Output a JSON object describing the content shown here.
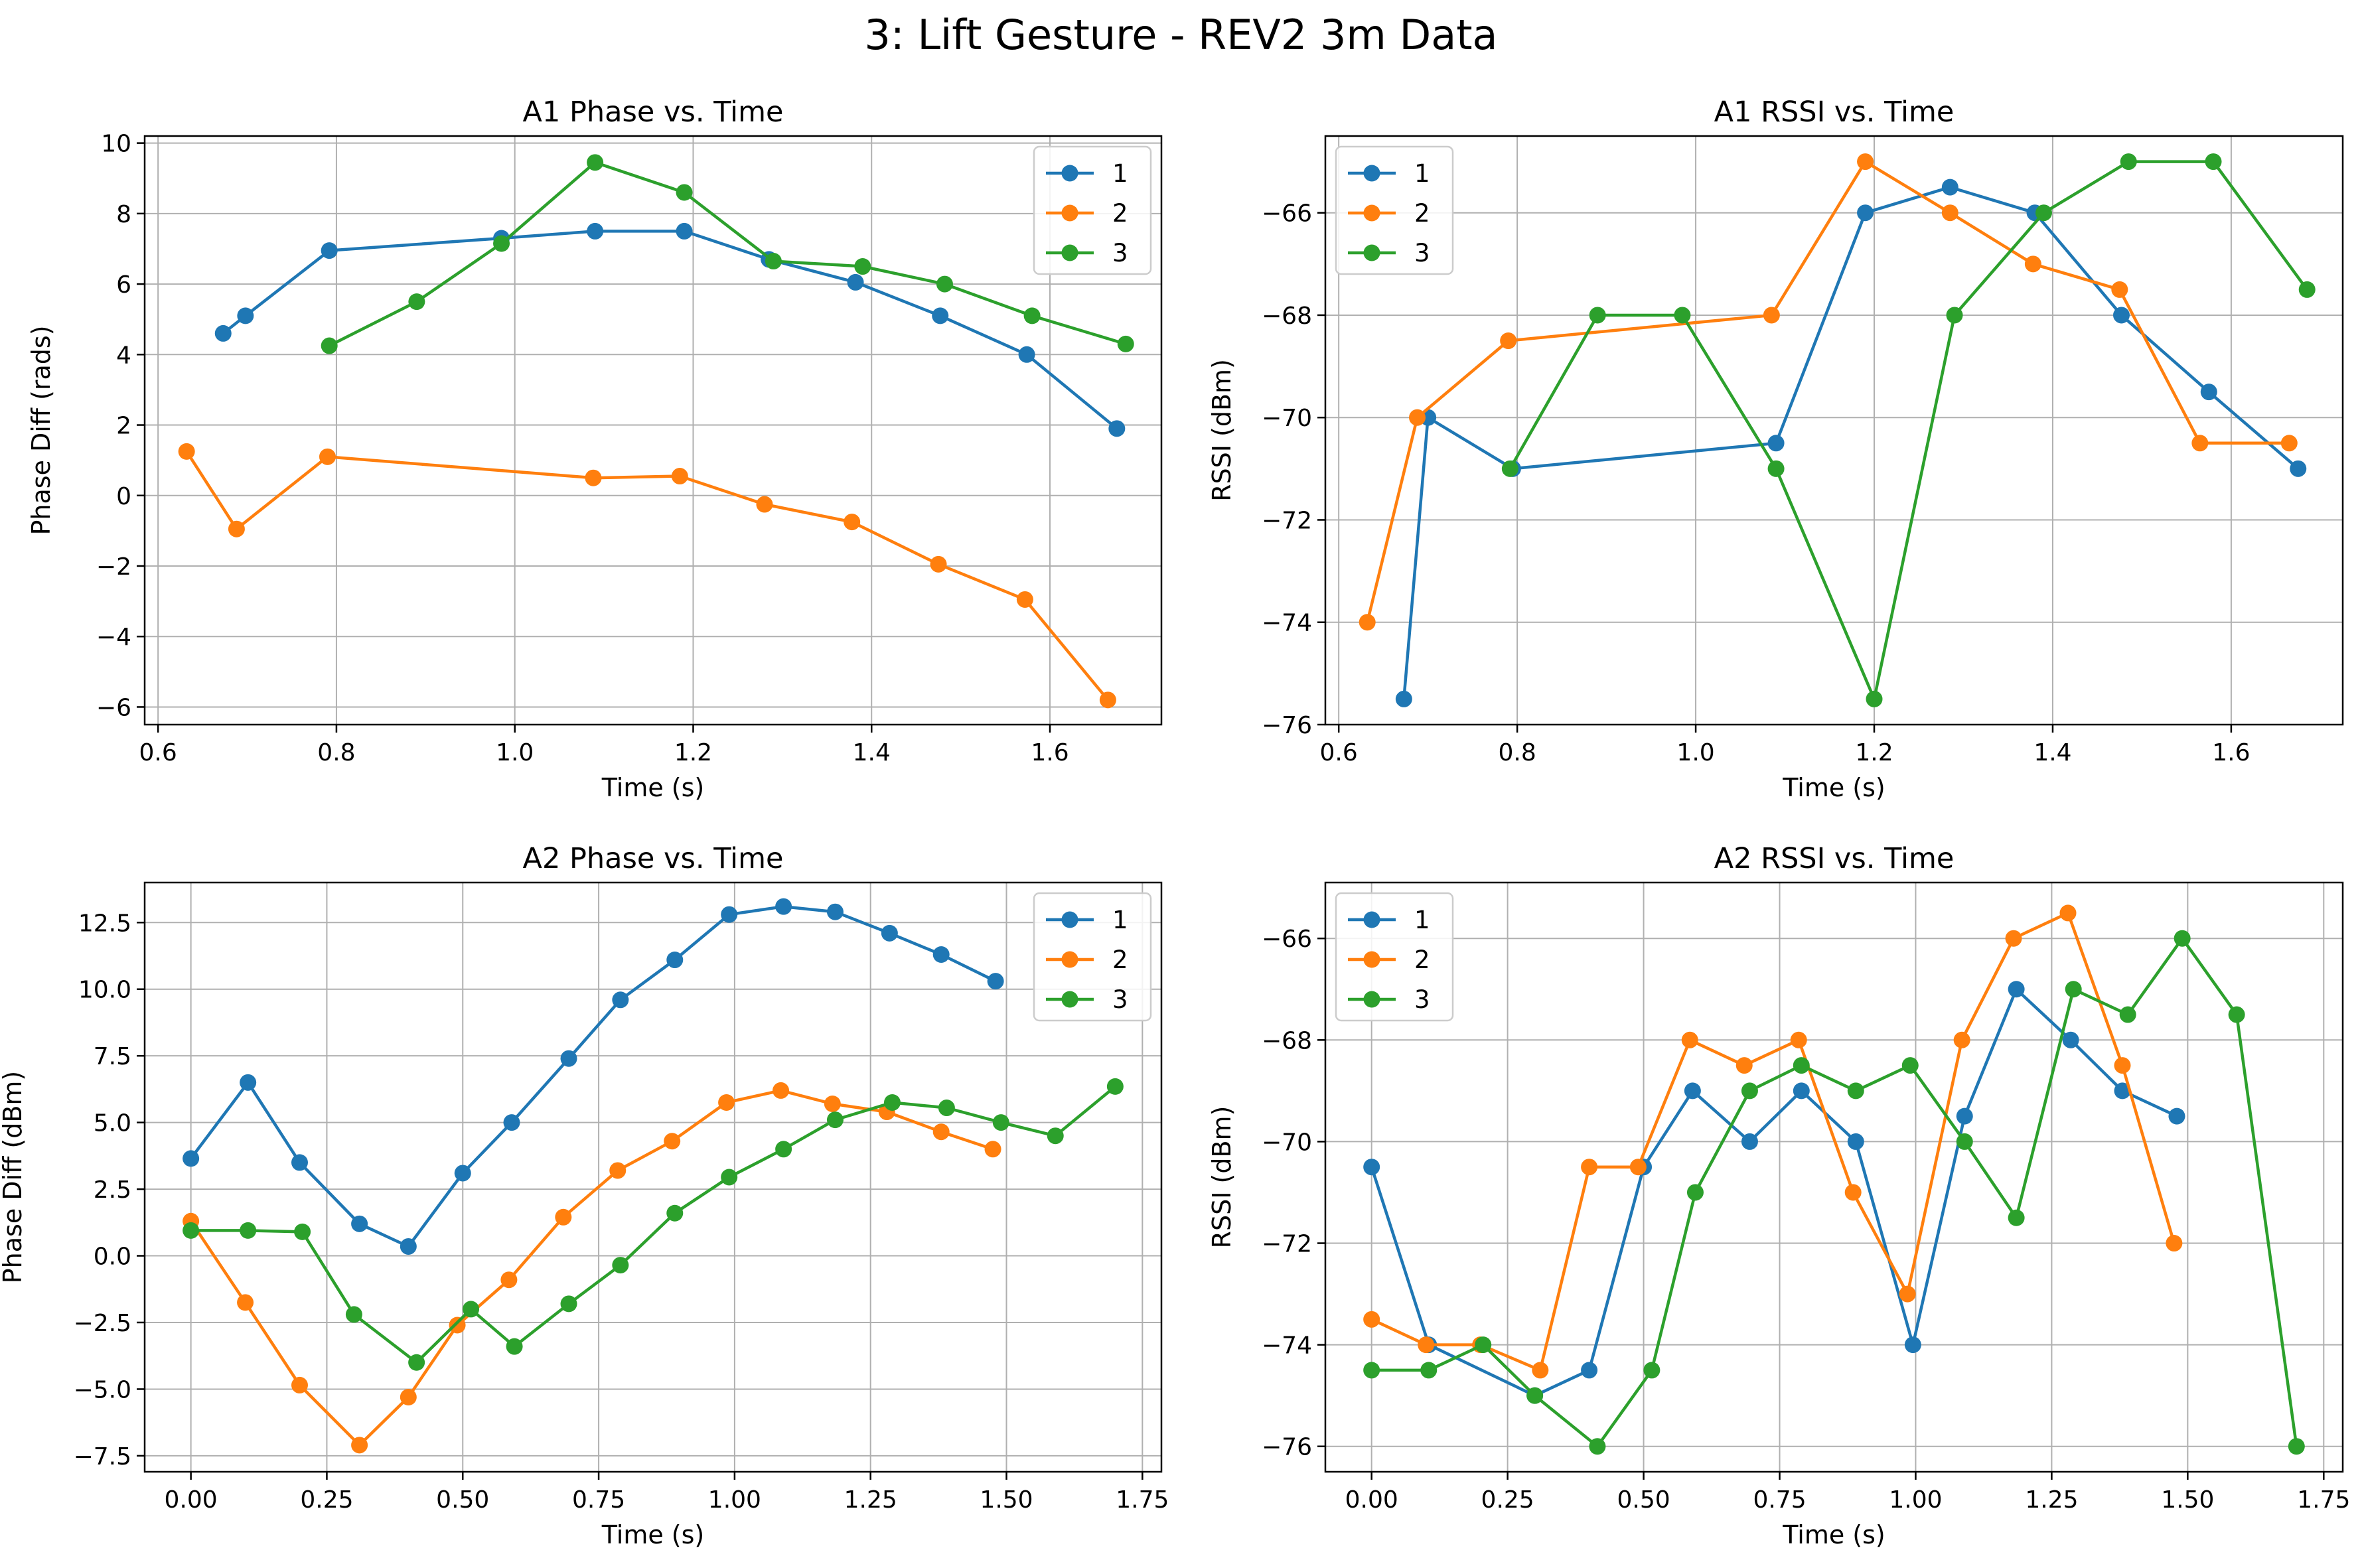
{
  "suptitle": "3: Lift Gesture - REV2 3m Data",
  "colors": {
    "1": "#1f77b4",
    "2": "#ff7f0e",
    "3": "#2ca02c"
  },
  "chart_data": [
    {
      "type": "line",
      "title": "A1 Phase vs. Time",
      "xlabel": "Time (s)",
      "ylabel": "Phase Diff (rads)",
      "xlim": [
        0.585,
        1.725
      ],
      "ylim": [
        -6.5,
        10.2
      ],
      "xticks": [
        0.6,
        0.8,
        1.0,
        1.2,
        1.4,
        1.6
      ],
      "xtick_labels": [
        "0.6",
        "0.8",
        "1.0",
        "1.2",
        "1.4",
        "1.6"
      ],
      "yticks": [
        -6,
        -4,
        -2,
        0,
        2,
        4,
        6,
        8,
        10
      ],
      "ytick_labels": [
        "−6",
        "−4",
        "−2",
        "0",
        "2",
        "4",
        "6",
        "8",
        "10"
      ],
      "grid": true,
      "legend_loc": "upper-right",
      "series": [
        {
          "name": "1",
          "x": [
            0.673,
            0.698,
            0.792,
            0.985,
            1.09,
            1.19,
            1.285,
            1.382,
            1.477,
            1.574,
            1.675
          ],
          "y": [
            4.6,
            5.1,
            6.95,
            7.3,
            7.5,
            7.5,
            6.7,
            6.05,
            5.1,
            4.0,
            1.9
          ]
        },
        {
          "name": "2",
          "x": [
            0.632,
            0.688,
            0.79,
            1.088,
            1.185,
            1.28,
            1.378,
            1.475,
            1.572,
            1.665
          ],
          "y": [
            1.25,
            -0.95,
            1.1,
            0.5,
            0.55,
            -0.25,
            -0.75,
            -1.95,
            -2.95,
            -5.8
          ]
        },
        {
          "name": "3",
          "x": [
            0.792,
            0.89,
            0.985,
            1.09,
            1.19,
            1.29,
            1.39,
            1.482,
            1.58,
            1.685
          ],
          "y": [
            4.25,
            5.5,
            7.15,
            9.45,
            8.6,
            6.65,
            6.5,
            6.0,
            5.1,
            4.3
          ]
        }
      ]
    },
    {
      "type": "line",
      "title": "A1 RSSI vs. Time",
      "xlabel": "Time (s)",
      "ylabel": "RSSI (dBm)",
      "xlim": [
        0.585,
        1.725
      ],
      "ylim": [
        -76,
        -64.5
      ],
      "xticks": [
        0.6,
        0.8,
        1.0,
        1.2,
        1.4,
        1.6
      ],
      "xtick_labels": [
        "0.6",
        "0.8",
        "1.0",
        "1.2",
        "1.4",
        "1.6"
      ],
      "yticks": [
        -76,
        -74,
        -72,
        -70,
        -68,
        -66
      ],
      "ytick_labels": [
        "−76",
        "−74",
        "−72",
        "−70",
        "−68",
        "−66"
      ],
      "grid": true,
      "legend_loc": "upper-left",
      "series": [
        {
          "name": "1",
          "x": [
            0.673,
            0.7,
            0.795,
            1.09,
            1.19,
            1.285,
            1.38,
            1.477,
            1.575,
            1.675
          ],
          "y": [
            -75.5,
            -70,
            -71,
            -70.5,
            -66,
            -65.5,
            -66,
            -68,
            -69.5,
            -71
          ]
        },
        {
          "name": "2",
          "x": [
            0.632,
            0.688,
            0.79,
            1.085,
            1.19,
            1.285,
            1.378,
            1.475,
            1.565,
            1.665
          ],
          "y": [
            -74,
            -70,
            -68.5,
            -68,
            -65,
            -66,
            -67,
            -67.5,
            -70.5,
            -70.5
          ]
        },
        {
          "name": "3",
          "x": [
            0.792,
            0.89,
            0.985,
            1.09,
            1.2,
            1.29,
            1.39,
            1.485,
            1.58,
            1.685
          ],
          "y": [
            -71,
            -68,
            -68,
            -71,
            -75.5,
            -68,
            -66,
            -65,
            -65,
            -67.5
          ]
        }
      ]
    },
    {
      "type": "line",
      "title": "A2 Phase vs. Time",
      "xlabel": "Time (s)",
      "ylabel": "Phase Diff (dBm)",
      "xlim": [
        -0.085,
        1.785
      ],
      "ylim": [
        -8.1,
        14.0
      ],
      "xticks": [
        0.0,
        0.25,
        0.5,
        0.75,
        1.0,
        1.25,
        1.5,
        1.75
      ],
      "xtick_labels": [
        "0.00",
        "0.25",
        "0.50",
        "0.75",
        "1.00",
        "1.25",
        "1.50",
        "1.75"
      ],
      "yticks": [
        -7.5,
        -5.0,
        -2.5,
        0.0,
        2.5,
        5.0,
        7.5,
        10.0,
        12.5
      ],
      "ytick_labels": [
        "−7.5",
        "−5.0",
        "−2.5",
        "0.0",
        "2.5",
        "5.0",
        "7.5",
        "10.0",
        "12.5"
      ],
      "grid": true,
      "legend_loc": "upper-right",
      "series": [
        {
          "name": "1",
          "x": [
            0.0,
            0.105,
            0.2,
            0.31,
            0.4,
            0.5,
            0.59,
            0.695,
            0.79,
            0.89,
            0.99,
            1.09,
            1.185,
            1.285,
            1.38,
            1.48
          ],
          "y": [
            3.65,
            6.5,
            3.5,
            1.2,
            0.35,
            3.1,
            5.0,
            7.4,
            9.6,
            11.1,
            12.8,
            13.1,
            12.9,
            12.1,
            11.3,
            10.3
          ]
        },
        {
          "name": "2",
          "x": [
            0.0,
            0.1,
            0.2,
            0.31,
            0.4,
            0.49,
            0.585,
            0.685,
            0.785,
            0.885,
            0.985,
            1.085,
            1.18,
            1.28,
            1.38,
            1.475
          ],
          "y": [
            1.3,
            -1.75,
            -4.85,
            -7.1,
            -5.3,
            -2.6,
            -0.9,
            1.45,
            3.2,
            4.3,
            5.75,
            6.2,
            5.7,
            5.4,
            4.65,
            4.0
          ]
        },
        {
          "name": "3",
          "x": [
            0.0,
            0.105,
            0.205,
            0.3,
            0.415,
            0.515,
            0.595,
            0.695,
            0.79,
            0.89,
            0.99,
            1.09,
            1.185,
            1.29,
            1.39,
            1.49,
            1.59,
            1.7
          ],
          "y": [
            0.95,
            0.95,
            0.9,
            -2.2,
            -4.0,
            -2.0,
            -3.4,
            -1.8,
            -0.35,
            1.6,
            2.95,
            4.0,
            5.1,
            5.75,
            5.55,
            5.0,
            4.5,
            6.35
          ]
        }
      ]
    },
    {
      "type": "line",
      "title": "A2 RSSI vs. Time",
      "xlabel": "Time (s)",
      "ylabel": "RSSI (dBm)",
      "xlim": [
        -0.085,
        1.785
      ],
      "ylim": [
        -76.5,
        -64.9
      ],
      "xticks": [
        0.0,
        0.25,
        0.5,
        0.75,
        1.0,
        1.25,
        1.5,
        1.75
      ],
      "xtick_labels": [
        "0.00",
        "0.25",
        "0.50",
        "0.75",
        "1.00",
        "1.25",
        "1.50",
        "1.75"
      ],
      "yticks": [
        -76,
        -74,
        -72,
        -70,
        -68,
        -66
      ],
      "ytick_labels": [
        "−76",
        "−74",
        "−72",
        "−70",
        "−68",
        "−66"
      ],
      "grid": true,
      "legend_loc": "upper-left",
      "series": [
        {
          "name": "1",
          "x": [
            0.0,
            0.105,
            0.3,
            0.4,
            0.5,
            0.59,
            0.695,
            0.79,
            0.89,
            0.995,
            1.09,
            1.185,
            1.285,
            1.38,
            1.48
          ],
          "y": [
            -70.5,
            -74,
            -75,
            -74.5,
            -70.5,
            -69,
            -70,
            -69,
            -70,
            -74,
            -69.5,
            -67,
            -68,
            -69,
            -69.5
          ]
        },
        {
          "name": "2",
          "x": [
            0.0,
            0.1,
            0.2,
            0.31,
            0.4,
            0.49,
            0.585,
            0.685,
            0.785,
            0.885,
            0.985,
            1.085,
            1.18,
            1.28,
            1.38,
            1.475
          ],
          "y": [
            -73.5,
            -74,
            -74,
            -74.5,
            -70.5,
            -70.5,
            -68,
            -68.5,
            -68,
            -71,
            -73,
            -68,
            -66,
            -65.5,
            -68.5,
            -72
          ]
        },
        {
          "name": "3",
          "x": [
            0.0,
            0.105,
            0.205,
            0.3,
            0.415,
            0.515,
            0.595,
            0.695,
            0.79,
            0.89,
            0.99,
            1.09,
            1.185,
            1.29,
            1.39,
            1.49,
            1.59,
            1.7
          ],
          "y": [
            -74.5,
            -74.5,
            -74,
            -75,
            -76,
            -74.5,
            -71,
            -69,
            -68.5,
            -69,
            -68.5,
            -70,
            -71.5,
            -67,
            -67.5,
            -66,
            -67.5,
            -76
          ]
        }
      ]
    }
  ]
}
